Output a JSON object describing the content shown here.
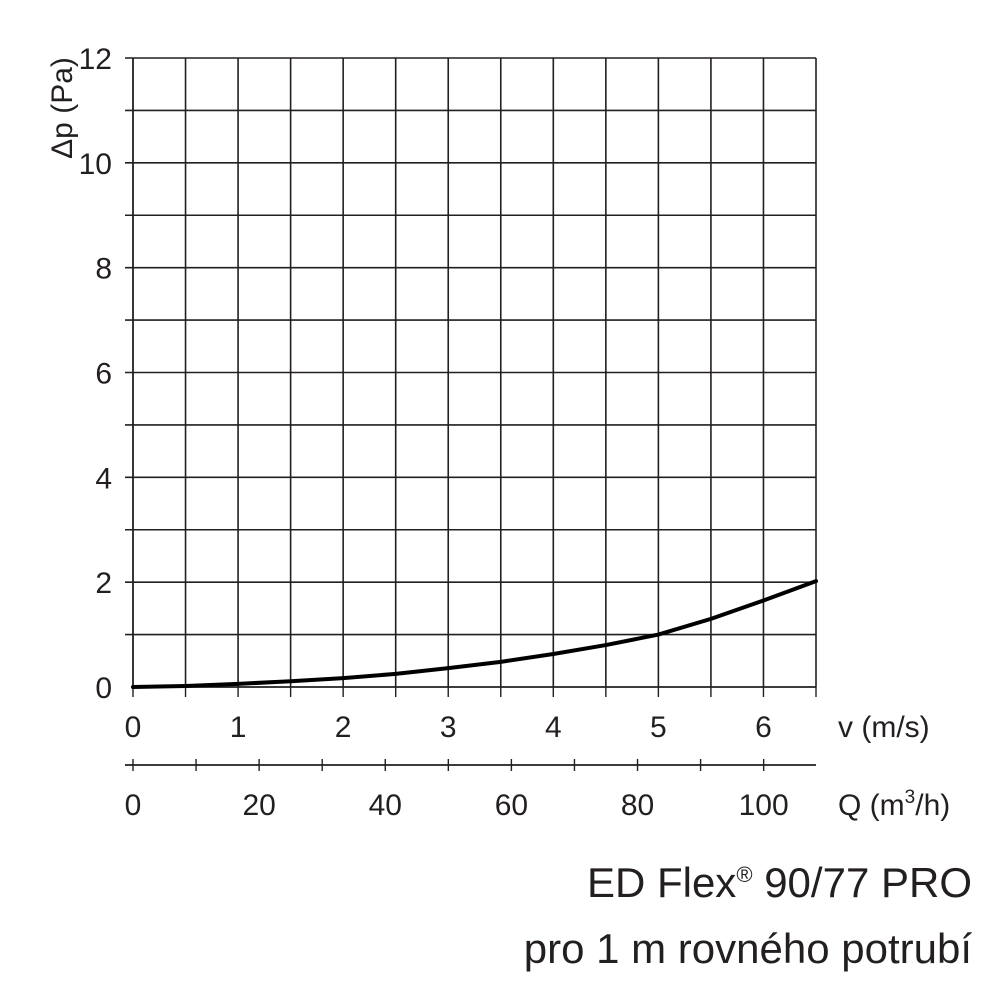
{
  "chart_data": {
    "type": "line",
    "title": "ED Flex",
    "title_mark": "®",
    "title_rest": " 90/77 PRO",
    "subtitle": "pro 1 m rovného potrubí",
    "ylabel": "Δp (Pa)",
    "xlabel": "v (m/s)",
    "x2label_base": "Q (m",
    "x2label_sup": "3",
    "x2label_end": "/h)",
    "xlim": [
      0,
      6.5
    ],
    "ylim": [
      0,
      12
    ],
    "x2lim": [
      0,
      108.3
    ],
    "yticks": [
      "0",
      "2",
      "4",
      "6",
      "8",
      "10",
      "12"
    ],
    "xticks": [
      "0",
      "1",
      "2",
      "3",
      "4",
      "5",
      "6"
    ],
    "x2ticks": [
      "0",
      "20",
      "40",
      "60",
      "80",
      "100"
    ],
    "grid": true,
    "line_color": "#000000",
    "series": [
      {
        "x": [
          0,
          0.5,
          1.0,
          1.5,
          2.0,
          2.5,
          3.0,
          3.5,
          4.0,
          4.5,
          5.0,
          5.5,
          6.0,
          6.5
        ],
        "y": [
          0,
          0.02,
          0.06,
          0.11,
          0.17,
          0.25,
          0.36,
          0.48,
          0.63,
          0.8,
          1.0,
          1.3,
          1.65,
          2.02
        ]
      }
    ]
  }
}
